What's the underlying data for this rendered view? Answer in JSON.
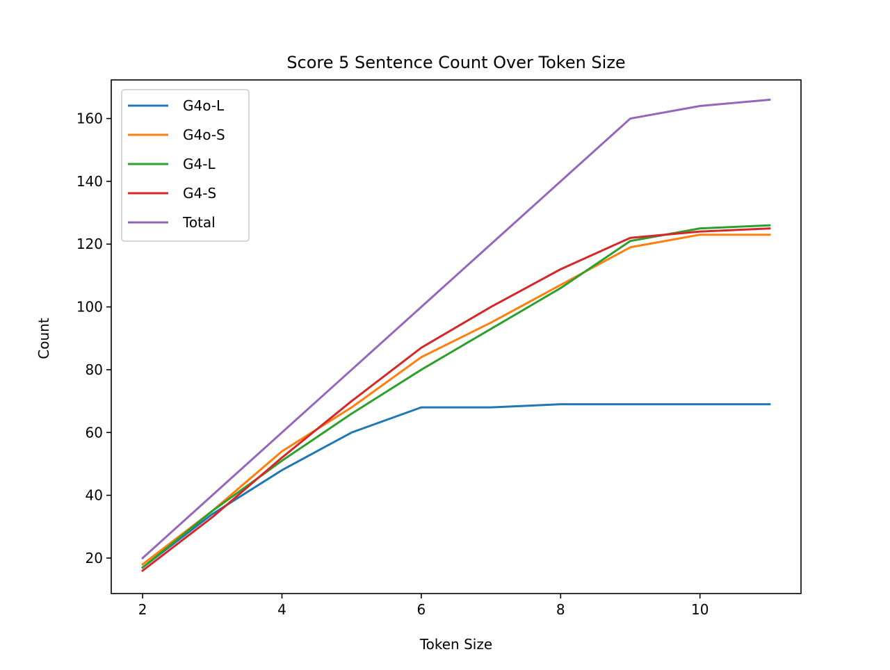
{
  "chart_data": {
    "type": "line",
    "title": "Score 5 Sentence Count Over Token Size",
    "xlabel": "Token Size",
    "ylabel": "Count",
    "x": [
      2,
      3,
      4,
      5,
      6,
      7,
      8,
      9,
      10,
      11
    ],
    "xlim": [
      1.55,
      11.45
    ],
    "ylim": [
      8.7,
      172.3
    ],
    "xticks": [
      2,
      4,
      6,
      8,
      10
    ],
    "yticks": [
      20,
      40,
      60,
      80,
      100,
      120,
      140,
      160
    ],
    "grid": false,
    "legend_position": "upper-left",
    "series": [
      {
        "name": "G4o-L",
        "color": "#1f77b4",
        "values": [
          17,
          34,
          48,
          60,
          68,
          68,
          69,
          69,
          69,
          69
        ]
      },
      {
        "name": "G4o-S",
        "color": "#ff7f0e",
        "values": [
          18,
          35,
          54,
          68,
          84,
          95,
          107,
          119,
          123,
          123
        ]
      },
      {
        "name": "G4-L",
        "color": "#2ca02c",
        "values": [
          17,
          35,
          51,
          66,
          80,
          93,
          106,
          121,
          125,
          126
        ]
      },
      {
        "name": "G4-S",
        "color": "#d62728",
        "values": [
          16,
          33,
          52,
          70,
          87,
          100,
          112,
          122,
          124,
          125
        ]
      },
      {
        "name": "Total",
        "color": "#9467bd",
        "values": [
          20,
          40,
          60,
          80,
          100,
          120,
          140,
          160,
          164,
          166
        ]
      }
    ]
  }
}
